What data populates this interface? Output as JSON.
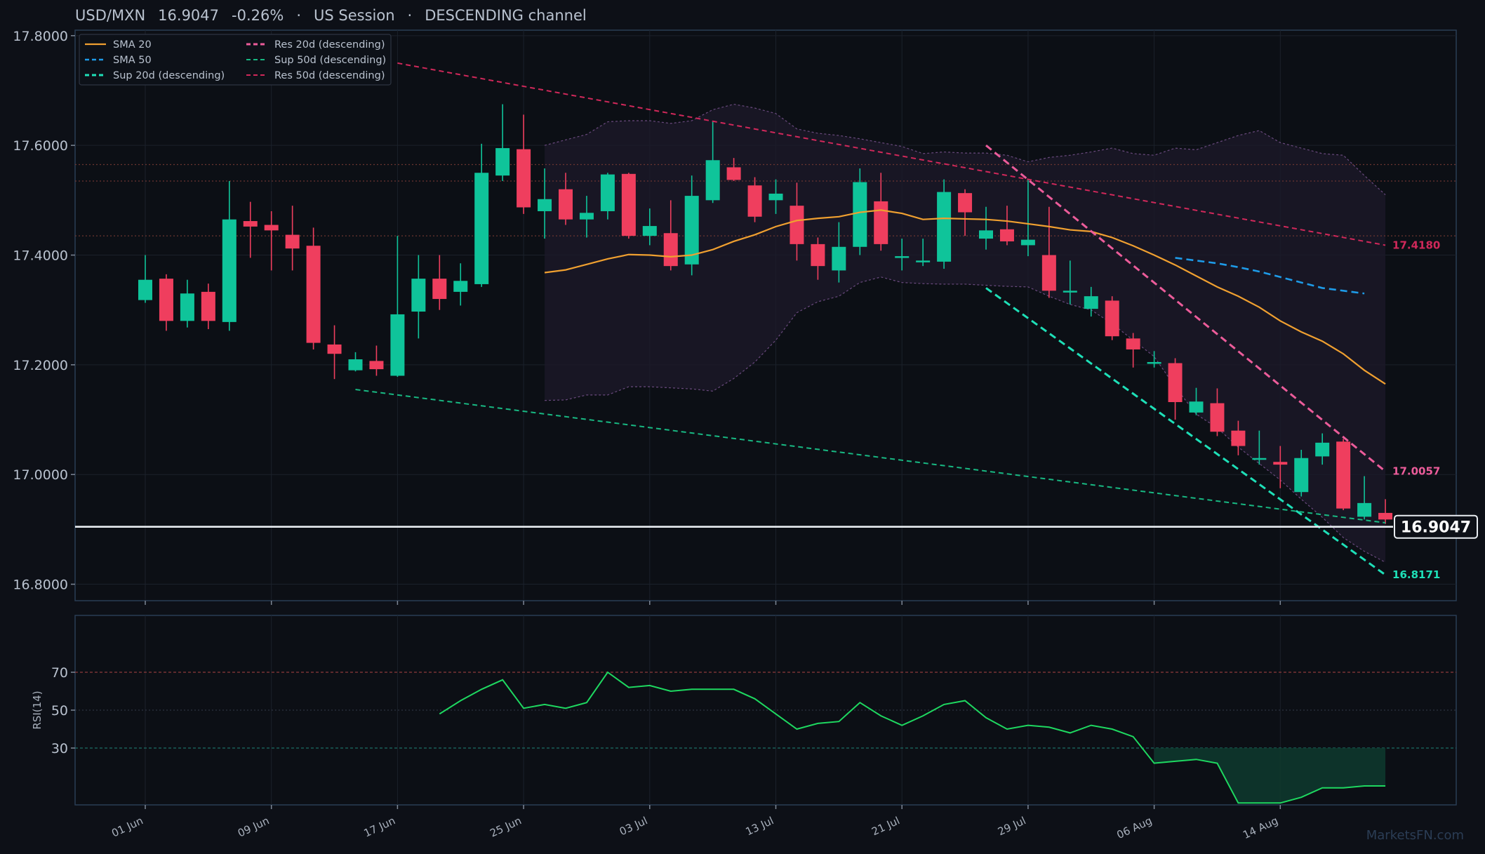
{
  "header": {
    "pair": "USD/MXN",
    "price": "16.9047",
    "change": "-0.26%",
    "session": "US Session",
    "channel": "DESCENDING channel",
    "sep": "·"
  },
  "watermark": "MarketsFN.com",
  "colors": {
    "background": "#0d1017",
    "panel": "#0c0f15",
    "up": "#0fc49a",
    "down": "#ef3e5e",
    "sma20": "#f0a030",
    "sma50": "#1e9be8",
    "res20": "#ec5c9a",
    "sup20": "#1ee0b8",
    "res50": "#d0285a",
    "sup50": "#18b882",
    "rsi": "#1ed860",
    "border": "#2a3d55"
  },
  "chart_data": [
    {
      "type": "candlestick",
      "title": "USD/MXN 16.9047 -0.26% · US Session · DESCENDING channel",
      "ylim": [
        16.77,
        17.81
      ],
      "yticks": [
        "17.8000",
        "17.6000",
        "17.4000",
        "17.2000",
        "17.0000",
        "16.8000"
      ],
      "yticks_values": [
        17.8,
        17.6,
        17.4,
        17.2,
        17.0,
        16.8
      ],
      "xticks": [
        {
          "index": 0,
          "label": "01 Jun"
        },
        {
          "index": 6,
          "label": "09 Jun"
        },
        {
          "index": 12,
          "label": "17 Jun"
        },
        {
          "index": 18,
          "label": "25 Jun"
        },
        {
          "index": 24,
          "label": "03 Jul"
        },
        {
          "index": 30,
          "label": "13 Jul"
        },
        {
          "index": 36,
          "label": "21 Jul"
        },
        {
          "index": 42,
          "label": "29 Jul"
        },
        {
          "index": 48,
          "label": "06 Aug"
        },
        {
          "index": 54,
          "label": "14 Aug"
        }
      ],
      "candles": [
        [
          17.318,
          17.355,
          17.4,
          17.313
        ],
        [
          17.357,
          17.28,
          17.365,
          17.262
        ],
        [
          17.28,
          17.33,
          17.355,
          17.268
        ],
        [
          17.333,
          17.28,
          17.348,
          17.265
        ],
        [
          17.278,
          17.465,
          17.535,
          17.262
        ],
        [
          17.462,
          17.452,
          17.497,
          17.395
        ],
        [
          17.455,
          17.445,
          17.48,
          17.372
        ],
        [
          17.437,
          17.412,
          17.49,
          17.372
        ],
        [
          17.417,
          17.24,
          17.45,
          17.228
        ],
        [
          17.237,
          17.22,
          17.272,
          17.174
        ],
        [
          17.19,
          17.21,
          17.223,
          17.188
        ],
        [
          17.207,
          17.192,
          17.235,
          17.18
        ],
        [
          17.18,
          17.292,
          17.435,
          17.178
        ],
        [
          17.297,
          17.357,
          17.4,
          17.248
        ],
        [
          17.357,
          17.32,
          17.4,
          17.3
        ],
        [
          17.333,
          17.353,
          17.385,
          17.308
        ],
        [
          17.347,
          17.55,
          17.603,
          17.342
        ],
        [
          17.545,
          17.595,
          17.675,
          17.535
        ],
        [
          17.593,
          17.487,
          17.656,
          17.475
        ],
        [
          17.48,
          17.502,
          17.558,
          17.43
        ],
        [
          17.52,
          17.465,
          17.55,
          17.455
        ],
        [
          17.465,
          17.477,
          17.508,
          17.432
        ],
        [
          17.48,
          17.547,
          17.55,
          17.465
        ],
        [
          17.548,
          17.435,
          17.55,
          17.43
        ],
        [
          17.435,
          17.453,
          17.485,
          17.418
        ],
        [
          17.44,
          17.38,
          17.5,
          17.372
        ],
        [
          17.383,
          17.508,
          17.545,
          17.363
        ],
        [
          17.5,
          17.573,
          17.645,
          17.495
        ],
        [
          17.56,
          17.537,
          17.577,
          17.535
        ],
        [
          17.527,
          17.47,
          17.542,
          17.46
        ],
        [
          17.5,
          17.512,
          17.538,
          17.475
        ],
        [
          17.49,
          17.42,
          17.532,
          17.39
        ],
        [
          17.42,
          17.38,
          17.432,
          17.355
        ],
        [
          17.372,
          17.415,
          17.46,
          17.35
        ],
        [
          17.415,
          17.533,
          17.558,
          17.4
        ],
        [
          17.498,
          17.42,
          17.55,
          17.408
        ],
        [
          17.398,
          17.398,
          17.43,
          17.372
        ],
        [
          17.388,
          17.39,
          17.43,
          17.38
        ],
        [
          17.388,
          17.515,
          17.538,
          17.375
        ],
        [
          17.513,
          17.478,
          17.52,
          17.435
        ],
        [
          17.43,
          17.445,
          17.488,
          17.41
        ],
        [
          17.447,
          17.425,
          17.49,
          17.418
        ],
        [
          17.418,
          17.428,
          17.538,
          17.398
        ],
        [
          17.4,
          17.335,
          17.488,
          17.322
        ],
        [
          17.333,
          17.335,
          17.39,
          17.31
        ],
        [
          17.302,
          17.325,
          17.342,
          17.288
        ],
        [
          17.317,
          17.252,
          17.325,
          17.245
        ],
        [
          17.248,
          17.228,
          17.258,
          17.195
        ],
        [
          17.205,
          17.205,
          17.225,
          17.195
        ],
        [
          17.203,
          17.132,
          17.212,
          17.1
        ],
        [
          17.113,
          17.133,
          17.158,
          17.108
        ],
        [
          17.13,
          17.078,
          17.157,
          17.07
        ],
        [
          17.08,
          17.052,
          17.098,
          17.035
        ],
        [
          17.03,
          17.03,
          17.08,
          17.018
        ],
        [
          17.023,
          17.018,
          17.052,
          16.975
        ],
        [
          16.968,
          17.03,
          17.045,
          16.96
        ],
        [
          17.033,
          17.058,
          17.075,
          17.018
        ],
        [
          17.06,
          16.938,
          17.065,
          16.935
        ],
        [
          16.923,
          16.948,
          16.997,
          16.918
        ],
        [
          16.93,
          16.918,
          16.955,
          16.91
        ]
      ],
      "candle_fields": [
        "open",
        "close",
        "high",
        "low"
      ],
      "series": [
        {
          "name": "SMA 20",
          "style": "solid",
          "color": "#f0a030",
          "start": 19,
          "values": [
            17.368,
            17.373,
            17.383,
            17.393,
            17.401,
            17.4,
            17.397,
            17.4,
            17.41,
            17.425,
            17.437,
            17.452,
            17.463,
            17.467,
            17.47,
            17.478,
            17.482,
            17.476,
            17.465,
            17.467,
            17.466,
            17.465,
            17.462,
            17.457,
            17.452,
            17.446,
            17.443,
            17.432,
            17.417,
            17.4,
            17.382,
            17.362,
            17.342,
            17.325,
            17.305,
            17.28,
            17.26,
            17.243,
            17.22,
            17.19,
            17.165
          ]
        },
        {
          "name": "SMA 50",
          "style": "dashed",
          "color": "#1e9be8",
          "start": 49,
          "values": [
            17.395,
            17.39,
            17.385,
            17.378,
            17.37,
            17.36,
            17.35,
            17.34,
            17.335,
            17.33
          ]
        },
        {
          "name": "Sup 20d (descending)",
          "style": "dashed",
          "color": "#1ee0b8",
          "start": 40,
          "values": [
            17.34,
            16.8171
          ],
          "end_label": "16.8171"
        },
        {
          "name": "Res 20d (descending)",
          "style": "dashed",
          "color": "#ec5c9a",
          "start": 40,
          "values": [
            17.6,
            17.0057
          ],
          "end_label": "17.0057"
        },
        {
          "name": "Sup 50d (descending)",
          "style": "dashed",
          "color": "#18b882",
          "start": 10,
          "values": [
            17.155,
            16.912
          ]
        },
        {
          "name": "Res 50d (descending)",
          "style": "dashed",
          "color": "#d0285a",
          "start": 12,
          "values": [
            17.75,
            17.418
          ],
          "end_label": "17.4180"
        }
      ],
      "bollinger": {
        "start": 19,
        "upper": [
          17.6,
          17.61,
          17.62,
          17.643,
          17.645,
          17.645,
          17.64,
          17.645,
          17.665,
          17.675,
          17.668,
          17.658,
          17.63,
          17.622,
          17.618,
          17.612,
          17.605,
          17.598,
          17.585,
          17.588,
          17.586,
          17.586,
          17.582,
          17.57,
          17.578,
          17.582,
          17.588,
          17.595,
          17.585,
          17.582,
          17.595,
          17.592,
          17.605,
          17.618,
          17.627,
          17.605,
          17.595,
          17.585,
          17.582,
          17.545,
          17.51
        ],
        "lower": [
          17.135,
          17.136,
          17.145,
          17.145,
          17.16,
          17.16,
          17.158,
          17.156,
          17.152,
          17.175,
          17.205,
          17.245,
          17.295,
          17.315,
          17.325,
          17.35,
          17.36,
          17.35,
          17.348,
          17.347,
          17.347,
          17.345,
          17.343,
          17.342,
          17.325,
          17.31,
          17.3,
          17.275,
          17.245,
          17.215,
          17.16,
          17.11,
          17.085,
          17.05,
          17.02,
          16.99,
          16.955,
          16.922,
          16.885,
          16.86,
          16.84
        ]
      },
      "horizontal_levels": [
        17.565,
        17.535,
        17.435
      ],
      "last_price": 16.9047,
      "last_price_label": "16.9047",
      "legend": "top-left"
    },
    {
      "type": "line",
      "ylabel": "RSI(14)",
      "ylim": [
        0,
        100
      ],
      "yticks": [
        "70",
        "50",
        "30"
      ],
      "yticks_values": [
        70,
        50,
        30
      ],
      "levels": [
        70,
        50,
        30
      ],
      "series": [
        {
          "name": "RSI(14)",
          "start": 14,
          "values": [
            48,
            55,
            61,
            66,
            51,
            53,
            51,
            54,
            70,
            62,
            63,
            60,
            61,
            61,
            61,
            56,
            48,
            40,
            43,
            44,
            54,
            47,
            42,
            47,
            53,
            55,
            46,
            40,
            42,
            41,
            38,
            42,
            40,
            36,
            22,
            23,
            24,
            22,
            1,
            1,
            1,
            4,
            9,
            9,
            10,
            10
          ]
        }
      ],
      "oversold_fill_from": 48
    }
  ]
}
